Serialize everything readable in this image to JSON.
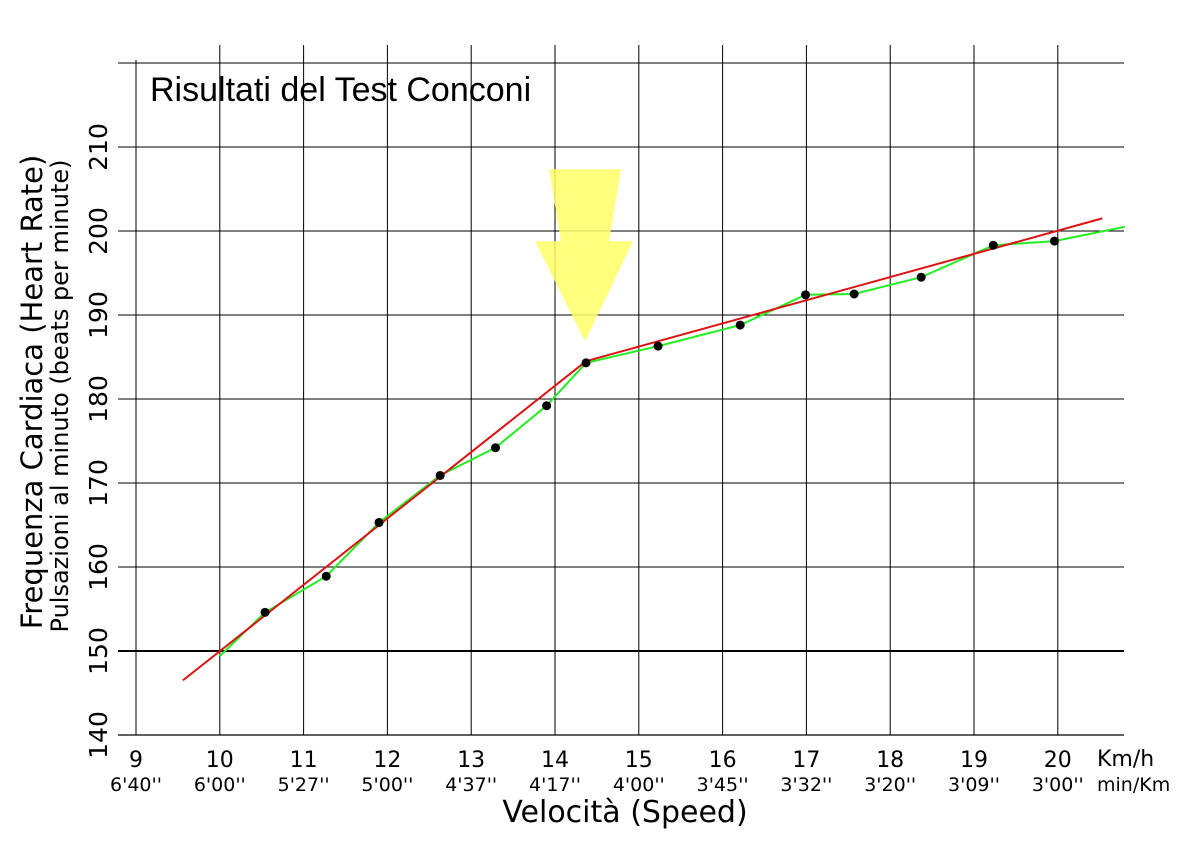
{
  "chart_data": {
    "type": "line",
    "title": "Risultati del Test Conconi",
    "xlabel": "Velocità (Speed)",
    "ylabel": "Frequenza Cardiaca (Heart Rate)",
    "ylabel2": "Pulsazioni al minuto (beats per minute)",
    "x_unit": "Km/h",
    "x2_unit": "min/Km",
    "xlim": [
      9,
      20.8
    ],
    "ylim": [
      140,
      220
    ],
    "x_ticks": [
      "9",
      "10",
      "11",
      "12",
      "13",
      "14",
      "15",
      "16",
      "17",
      "18",
      "19",
      "20"
    ],
    "x2_ticks": [
      "6'40''",
      "6'00''",
      "5'27''",
      "5'00''",
      "4'37''",
      "4'17''",
      "4'00''",
      "3'45''",
      "3'32''",
      "3'20''",
      "3'09''",
      "3'00''"
    ],
    "y_ticks": [
      "140",
      "150",
      "160",
      "170",
      "180",
      "190",
      "200",
      "210"
    ],
    "grid": true,
    "series": [
      {
        "kind": "measured",
        "color": "#22ee22",
        "x": [
          10.0,
          10.54,
          11.27,
          11.9,
          12.63,
          13.29,
          13.9,
          14.37,
          15.23,
          16.21,
          16.99,
          17.57,
          18.37,
          19.23,
          19.96,
          20.8
        ],
        "y": [
          149.4,
          154.6,
          158.9,
          165.3,
          170.9,
          174.2,
          179.2,
          184.3,
          186.3,
          188.8,
          192.4,
          192.5,
          194.5,
          198.3,
          198.8,
          200.5
        ]
      },
      {
        "kind": "trend-line-low",
        "color": "#dd1111",
        "x": [
          9.56,
          14.37
        ],
        "y": [
          146.5,
          184.5
        ]
      },
      {
        "kind": "trend-line-high",
        "color": "#dd1111",
        "x": [
          14.37,
          20.53
        ],
        "y": [
          184.5,
          201.5
        ]
      }
    ],
    "points": {
      "color": "#000000",
      "x": [
        10.54,
        11.27,
        11.9,
        12.63,
        13.29,
        13.9,
        14.37,
        15.23,
        16.21,
        16.99,
        17.57,
        18.37,
        19.23,
        19.96
      ],
      "y": [
        154.6,
        158.9,
        165.3,
        170.9,
        174.2,
        179.2,
        184.3,
        186.3,
        188.8,
        192.4,
        192.5,
        194.5,
        198.3,
        198.8
      ]
    },
    "deflection_marker": {
      "color": "#ffff66",
      "shape": "down-arrow",
      "x": 14.37,
      "y": 184.5
    }
  }
}
